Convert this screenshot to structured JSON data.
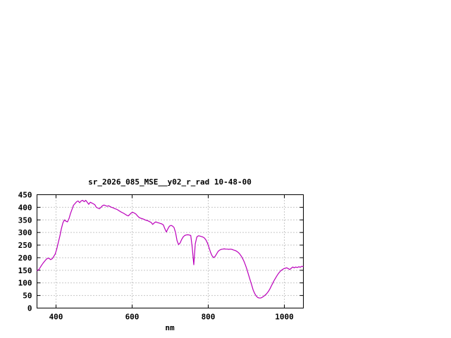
{
  "window": {
    "background_color": "#ffffff"
  },
  "chart_data": {
    "type": "line",
    "title": "sr_2026_085_MSE__y02_r_rad 10-48-00",
    "xlabel": "nm",
    "ylabel": "",
    "xlim": [
      350,
      1050
    ],
    "ylim": [
      0,
      450
    ],
    "x_ticks": [
      400,
      600,
      800,
      1000
    ],
    "y_ticks": [
      0,
      50,
      100,
      150,
      200,
      250,
      300,
      350,
      400,
      450
    ],
    "grid": true,
    "legend_position": "none",
    "line_color": "#bb00bb",
    "grid_color": "#909090",
    "axis_color": "#000000",
    "series": [
      {
        "name": "sr_2026_085_MSE__y02_r_rad",
        "points": [
          [
            350,
            148
          ],
          [
            354,
            152
          ],
          [
            358,
            160
          ],
          [
            362,
            170
          ],
          [
            366,
            178
          ],
          [
            370,
            186
          ],
          [
            374,
            193
          ],
          [
            378,
            198
          ],
          [
            382,
            197
          ],
          [
            386,
            192
          ],
          [
            390,
            196
          ],
          [
            394,
            205
          ],
          [
            398,
            215
          ],
          [
            402,
            235
          ],
          [
            406,
            260
          ],
          [
            410,
            285
          ],
          [
            414,
            315
          ],
          [
            418,
            338
          ],
          [
            422,
            350
          ],
          [
            426,
            345
          ],
          [
            430,
            342
          ],
          [
            434,
            355
          ],
          [
            438,
            375
          ],
          [
            442,
            392
          ],
          [
            446,
            408
          ],
          [
            450,
            415
          ],
          [
            454,
            422
          ],
          [
            458,
            425
          ],
          [
            462,
            418
          ],
          [
            466,
            425
          ],
          [
            470,
            428
          ],
          [
            474,
            422
          ],
          [
            478,
            428
          ],
          [
            482,
            420
          ],
          [
            486,
            412
          ],
          [
            490,
            420
          ],
          [
            494,
            417
          ],
          [
            498,
            414
          ],
          [
            502,
            410
          ],
          [
            506,
            400
          ],
          [
            510,
            397
          ],
          [
            514,
            394
          ],
          [
            518,
            400
          ],
          [
            522,
            406
          ],
          [
            526,
            409
          ],
          [
            530,
            407
          ],
          [
            534,
            404
          ],
          [
            538,
            406
          ],
          [
            542,
            403
          ],
          [
            546,
            400
          ],
          [
            550,
            398
          ],
          [
            554,
            395
          ],
          [
            558,
            393
          ],
          [
            562,
            390
          ],
          [
            566,
            386
          ],
          [
            570,
            382
          ],
          [
            574,
            379
          ],
          [
            578,
            376
          ],
          [
            582,
            372
          ],
          [
            586,
            368
          ],
          [
            590,
            366
          ],
          [
            594,
            372
          ],
          [
            598,
            378
          ],
          [
            602,
            380
          ],
          [
            606,
            377
          ],
          [
            610,
            373
          ],
          [
            614,
            366
          ],
          [
            618,
            360
          ],
          [
            622,
            357
          ],
          [
            626,
            355
          ],
          [
            630,
            353
          ],
          [
            634,
            350
          ],
          [
            638,
            348
          ],
          [
            642,
            346
          ],
          [
            646,
            343
          ],
          [
            650,
            340
          ],
          [
            654,
            332
          ],
          [
            658,
            338
          ],
          [
            662,
            342
          ],
          [
            666,
            340
          ],
          [
            670,
            338
          ],
          [
            674,
            336
          ],
          [
            678,
            334
          ],
          [
            682,
            330
          ],
          [
            686,
            315
          ],
          [
            690,
            302
          ],
          [
            694,
            315
          ],
          [
            698,
            325
          ],
          [
            702,
            328
          ],
          [
            706,
            326
          ],
          [
            710,
            320
          ],
          [
            714,
            300
          ],
          [
            718,
            268
          ],
          [
            722,
            252
          ],
          [
            726,
            258
          ],
          [
            730,
            272
          ],
          [
            734,
            282
          ],
          [
            738,
            288
          ],
          [
            742,
            290
          ],
          [
            746,
            291
          ],
          [
            750,
            290
          ],
          [
            754,
            288
          ],
          [
            758,
            240
          ],
          [
            762,
            172
          ],
          [
            766,
            255
          ],
          [
            770,
            282
          ],
          [
            774,
            287
          ],
          [
            778,
            286
          ],
          [
            782,
            284
          ],
          [
            786,
            282
          ],
          [
            790,
            278
          ],
          [
            794,
            270
          ],
          [
            798,
            258
          ],
          [
            802,
            240
          ],
          [
            806,
            222
          ],
          [
            810,
            208
          ],
          [
            814,
            200
          ],
          [
            818,
            205
          ],
          [
            822,
            215
          ],
          [
            826,
            225
          ],
          [
            830,
            230
          ],
          [
            834,
            233
          ],
          [
            838,
            234
          ],
          [
            842,
            235
          ],
          [
            846,
            234
          ],
          [
            850,
            234
          ],
          [
            854,
            233
          ],
          [
            858,
            234
          ],
          [
            862,
            233
          ],
          [
            866,
            231
          ],
          [
            870,
            229
          ],
          [
            874,
            226
          ],
          [
            878,
            222
          ],
          [
            882,
            216
          ],
          [
            886,
            208
          ],
          [
            890,
            198
          ],
          [
            894,
            185
          ],
          [
            898,
            170
          ],
          [
            902,
            152
          ],
          [
            906,
            132
          ],
          [
            910,
            112
          ],
          [
            914,
            92
          ],
          [
            918,
            72
          ],
          [
            922,
            58
          ],
          [
            926,
            48
          ],
          [
            930,
            42
          ],
          [
            934,
            40
          ],
          [
            938,
            40
          ],
          [
            942,
            43
          ],
          [
            946,
            47
          ],
          [
            950,
            52
          ],
          [
            954,
            58
          ],
          [
            958,
            66
          ],
          [
            962,
            76
          ],
          [
            966,
            88
          ],
          [
            970,
            100
          ],
          [
            974,
            112
          ],
          [
            978,
            122
          ],
          [
            982,
            132
          ],
          [
            986,
            140
          ],
          [
            990,
            147
          ],
          [
            994,
            152
          ],
          [
            998,
            156
          ],
          [
            1002,
            158
          ],
          [
            1006,
            160
          ],
          [
            1010,
            157
          ],
          [
            1014,
            153
          ],
          [
            1018,
            158
          ],
          [
            1022,
            163
          ],
          [
            1026,
            160
          ],
          [
            1030,
            163
          ],
          [
            1034,
            161
          ],
          [
            1038,
            164
          ],
          [
            1042,
            162
          ],
          [
            1046,
            166
          ],
          [
            1050,
            164
          ]
        ]
      }
    ]
  }
}
